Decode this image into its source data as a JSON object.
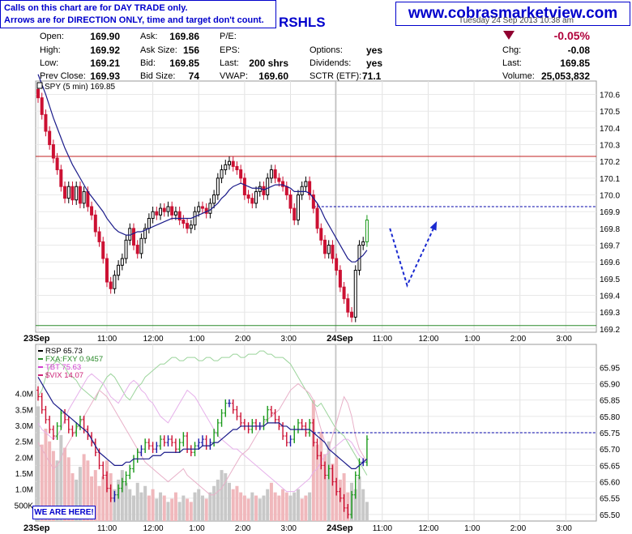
{
  "notice": {
    "line1": "Calls on this chart are for DAY TRADE only.",
    "line2": "Arrows are for DIRECTION ONLY, time and target don't count."
  },
  "website": "www.cobrasmarketview.com",
  "ticker_partial": "RSHLS",
  "quote": {
    "open_label": "Open:",
    "open": "169.90",
    "high_label": "High:",
    "high": "169.92",
    "low_label": "Low:",
    "low": "169.21",
    "prev_close_label": "Prev Close:",
    "prev_close": "169.93",
    "ask_label": "Ask:",
    "ask": "169.86",
    "ask_size_label": "Ask Size:",
    "ask_size": "156",
    "bid_label": "Bid:",
    "bid": "169.85",
    "bid_size_label": "Bid Size:",
    "bid_size": "74",
    "pe_label": "P/E:",
    "eps_label": "EPS:",
    "last_label": "Last:",
    "last_shares": "200 shrs",
    "vwap_label": "VWAP:",
    "vwap": "169.60",
    "options_label": "Options:",
    "options": "yes",
    "dividends_label": "Dividends:",
    "dividends": "yes",
    "sctr_label": "SCTR (ETF):",
    "sctr": "71.1",
    "pct_change": "-0.05%",
    "chg_label": "Chg:",
    "chg": "-0.08",
    "last2_label": "Last:",
    "last2": "169.85",
    "volume_label": "Volume:",
    "volume": "25,053,832",
    "date_partial": "Tuesday  24 Sep 2013  10:38 am"
  },
  "here_label": "WE ARE HERE!",
  "chart_data": [
    {
      "type": "candlestick",
      "legend": "SPY (5 min) 169.85",
      "ylim": [
        169.18,
        170.68
      ],
      "yticks": [
        "169.2",
        "169.3",
        "169.4",
        "169.5",
        "169.6",
        "169.7",
        "169.8",
        "169.9",
        "170.0",
        "170.1",
        "170.2",
        "170.3",
        "170.4",
        "170.5",
        "170.6"
      ],
      "x_labels": [
        {
          "t": 0,
          "label": "23Sep"
        },
        {
          "t": 18,
          "label": "11:00"
        },
        {
          "t": 30,
          "label": "12:00"
        },
        {
          "t": 42,
          "label": "1:00"
        },
        {
          "t": 54,
          "label": "2:00"
        },
        {
          "t": 66,
          "label": "3:00"
        },
        {
          "t": 78,
          "label": "24Sep"
        },
        {
          "t": 90,
          "label": "11:00"
        },
        {
          "t": 102,
          "label": "12:00"
        },
        {
          "t": 114,
          "label": "1:00"
        },
        {
          "t": 126,
          "label": "2:00"
        },
        {
          "t": 138,
          "label": "3:00"
        }
      ],
      "hlines": [
        {
          "value": 170.23,
          "color": "#c02020",
          "style": "solid"
        },
        {
          "value": 169.93,
          "color": "#0000aa",
          "style": "dashed",
          "from_t": 72
        },
        {
          "value": 169.22,
          "color": "#2a8a2a",
          "style": "solid"
        }
      ],
      "close": [
        170.58,
        170.48,
        170.38,
        170.3,
        170.22,
        170.15,
        170.05,
        169.98,
        170.05,
        169.97,
        170.05,
        169.95,
        170.02,
        169.93,
        169.88,
        169.78,
        169.72,
        169.62,
        169.48,
        169.44,
        169.52,
        169.58,
        169.62,
        169.73,
        169.8,
        169.7,
        169.65,
        169.74,
        169.8,
        169.86,
        169.9,
        169.88,
        169.92,
        169.9,
        169.93,
        169.88,
        169.9,
        169.85,
        169.83,
        169.8,
        169.82,
        169.9,
        169.93,
        169.92,
        169.89,
        169.95,
        170.0,
        170.1,
        170.15,
        170.18,
        170.2,
        170.17,
        170.15,
        170.1,
        170.0,
        169.98,
        169.95,
        170.02,
        170.05,
        170.0,
        170.1,
        170.15,
        170.1,
        170.08,
        170.05,
        170.0,
        169.92,
        169.85,
        170.0,
        170.05,
        170.08,
        170.0,
        169.92,
        169.8,
        169.73,
        169.65,
        169.7,
        169.62,
        169.55,
        169.45,
        169.38,
        169.3,
        169.27,
        169.55,
        169.7,
        169.72,
        169.85
      ],
      "ma": [
        170.72,
        170.66,
        170.6,
        170.53,
        170.46,
        170.4,
        170.34,
        170.28,
        170.23,
        170.18,
        170.14,
        170.1,
        170.06,
        170.02,
        169.99,
        169.96,
        169.93,
        169.9,
        169.86,
        169.83,
        169.8,
        169.78,
        169.77,
        169.76,
        169.76,
        169.77,
        169.78,
        169.78,
        169.79,
        169.8,
        169.81,
        169.82,
        169.83,
        169.84,
        169.85,
        169.86,
        169.86,
        169.86,
        169.86,
        169.86,
        169.86,
        169.87,
        169.88,
        169.89,
        169.9,
        169.91,
        169.93,
        169.95,
        169.98,
        170.0,
        170.03,
        170.05,
        170.06,
        170.07,
        170.06,
        170.05,
        170.04,
        170.04,
        170.04,
        170.03,
        170.04,
        170.05,
        170.06,
        170.06,
        170.06,
        170.05,
        170.04,
        170.02,
        170.02,
        170.02,
        170.02,
        170.01,
        169.98,
        169.95,
        169.91,
        169.86,
        169.82,
        169.78,
        169.74,
        169.7,
        169.66,
        169.62,
        169.6,
        169.6,
        169.62,
        169.64,
        169.67
      ],
      "arrow": [
        {
          "t": 92,
          "v": 169.8
        },
        {
          "t": 96.5,
          "v": 169.46
        },
        {
          "t": 104,
          "v": 169.83
        }
      ]
    },
    {
      "type": "candlestick-with-volume",
      "legend": [
        "RSP 65.73",
        "FXA:FXY 0.9457",
        "TBT 75.63",
        "$VIX 14.07"
      ],
      "legend_colors": [
        "#000000",
        "#2a8a2a",
        "#d040d0",
        "#cc2277"
      ],
      "ylim": [
        65.48,
        66.02
      ],
      "yticks": [
        "65.50",
        "65.55",
        "65.60",
        "65.65",
        "65.70",
        "65.75",
        "65.80",
        "65.85",
        "65.90",
        "65.95"
      ],
      "volume_ticks": [
        "500K",
        "1.0M",
        "1.5M",
        "2.0M",
        "2.5M",
        "3.0M",
        "3.5M",
        "4.0M"
      ],
      "hline": {
        "value": 65.75,
        "color": "#0000aa",
        "style": "dashed",
        "from_t": 72
      },
      "close": [
        65.86,
        65.82,
        65.79,
        65.76,
        65.74,
        65.77,
        65.81,
        65.79,
        65.76,
        65.75,
        65.77,
        65.79,
        65.76,
        65.74,
        65.72,
        65.69,
        65.65,
        65.62,
        65.58,
        65.55,
        65.56,
        65.58,
        65.6,
        65.62,
        65.64,
        65.67,
        65.69,
        65.7,
        65.72,
        65.71,
        65.7,
        65.71,
        65.73,
        65.72,
        65.73,
        65.72,
        65.7,
        65.72,
        65.74,
        65.7,
        65.69,
        65.71,
        65.72,
        65.73,
        65.71,
        65.72,
        65.75,
        65.78,
        65.81,
        65.84,
        65.84,
        65.82,
        65.8,
        65.78,
        65.77,
        65.76,
        65.78,
        65.77,
        65.77,
        65.79,
        65.82,
        65.81,
        65.79,
        65.77,
        65.74,
        65.72,
        65.73,
        65.76,
        65.78,
        65.77,
        65.75,
        65.78,
        65.72,
        65.68,
        65.65,
        65.62,
        65.64,
        65.6,
        65.57,
        65.55,
        65.52,
        65.5,
        65.56,
        65.62,
        65.66,
        65.66,
        65.73
      ],
      "ma": [
        65.92,
        65.9,
        65.88,
        65.86,
        65.84,
        65.83,
        65.82,
        65.81,
        65.8,
        65.79,
        65.78,
        65.77,
        65.76,
        65.75,
        65.73,
        65.71,
        65.69,
        65.68,
        65.67,
        65.66,
        65.65,
        65.65,
        65.65,
        65.66,
        65.66,
        65.67,
        65.67,
        65.67,
        65.67,
        65.67,
        65.68,
        65.68,
        65.68,
        65.69,
        65.69,
        65.69,
        65.69,
        65.69,
        65.7,
        65.7,
        65.7,
        65.7,
        65.7,
        65.71,
        65.71,
        65.71,
        65.72,
        65.72,
        65.73,
        65.74,
        65.75,
        65.76,
        65.76,
        65.77,
        65.77,
        65.77,
        65.77,
        65.77,
        65.77,
        65.77,
        65.78,
        65.78,
        65.78,
        65.78,
        65.77,
        65.77,
        65.76,
        65.76,
        65.76,
        65.76,
        65.76,
        65.76,
        65.75,
        65.74,
        65.73,
        65.72,
        65.7,
        65.69,
        65.68,
        65.67,
        65.66,
        65.65,
        65.64,
        65.64,
        65.65,
        65.66,
        65.67
      ],
      "volume_millions": [
        3.6,
        2.4,
        2.9,
        2.5,
        2.2,
        1.9,
        2.7,
        2.3,
        2.0,
        1.5,
        1.3,
        1.7,
        2.1,
        1.9,
        1.4,
        1.6,
        1.1,
        1.4,
        1.9,
        1.5,
        1.0,
        1.3,
        1.6,
        1.2,
        1.0,
        0.8,
        1.2,
        0.9,
        1.1,
        0.8,
        1.0,
        0.7,
        0.9,
        0.8,
        0.6,
        0.7,
        0.9,
        0.6,
        0.8,
        0.7,
        0.6,
        0.9,
        1.0,
        0.8,
        0.7,
        0.9,
        1.1,
        1.3,
        1.6,
        1.5,
        1.2,
        1.0,
        1.1,
        0.9,
        0.8,
        0.7,
        0.9,
        0.8,
        0.7,
        0.8,
        1.0,
        1.2,
        0.9,
        0.8,
        1.0,
        0.9,
        0.8,
        0.9,
        1.0,
        0.7,
        0.8,
        0.9,
        3.8,
        2.4,
        2.8,
        2.1,
        2.5,
        1.8,
        2.0,
        1.3,
        1.5,
        0.9,
        1.2,
        1.0,
        1.4,
        1.0,
        0.6
      ],
      "fxa_fxy": [
        65.86,
        65.88,
        65.92,
        65.95,
        65.96,
        65.97,
        65.96,
        65.95,
        65.93,
        65.92,
        65.91,
        65.89,
        65.88,
        65.87,
        65.86,
        65.85,
        65.88,
        65.9,
        65.92,
        65.93,
        65.92,
        65.9,
        65.88,
        65.86,
        65.85,
        65.87,
        65.89,
        65.9,
        65.92,
        65.93,
        65.94,
        65.95,
        65.96,
        65.96,
        65.97,
        65.98,
        65.98,
        65.97,
        65.97,
        65.98,
        65.98,
        65.98,
        65.97,
        65.97,
        65.98,
        65.98,
        65.97,
        65.97,
        65.98,
        65.98,
        65.98,
        65.99,
        65.99,
        65.98,
        65.98,
        65.99,
        65.99,
        65.99,
        66.0,
        66.0,
        65.99,
        65.99,
        65.98,
        65.98,
        65.98,
        65.97,
        65.96,
        65.94,
        65.92,
        65.9,
        65.88,
        65.86,
        65.84,
        65.83,
        65.84,
        65.82,
        65.8,
        65.78,
        65.76,
        65.75,
        65.74,
        65.72,
        65.7,
        65.68,
        65.66,
        65.64,
        65.62
      ],
      "tbt": [
        65.78,
        65.76,
        65.75,
        65.74,
        65.73,
        65.74,
        65.76,
        65.79,
        65.82,
        65.84,
        65.86,
        65.88,
        65.9,
        65.92,
        65.93,
        65.92,
        65.91,
        65.9,
        65.88,
        65.86,
        65.85,
        65.84,
        65.86,
        65.88,
        65.9,
        65.91,
        65.9,
        65.88,
        65.87,
        65.85,
        65.84,
        65.82,
        65.8,
        65.79,
        65.78,
        65.8,
        65.82,
        65.84,
        65.86,
        65.88,
        65.87,
        65.86,
        65.84,
        65.82,
        65.8,
        65.78,
        65.76,
        65.74,
        65.73,
        65.72,
        65.71,
        65.7,
        65.7,
        65.69,
        65.68,
        65.67,
        65.66,
        65.65,
        65.64,
        65.63,
        65.62,
        65.61,
        65.6,
        65.59,
        65.58,
        65.57,
        65.57,
        65.57,
        65.58,
        65.59,
        65.6,
        65.61,
        65.63,
        65.64,
        65.66,
        65.68,
        65.69,
        65.7,
        65.71,
        65.72,
        65.73,
        65.73,
        65.72,
        65.7,
        65.68,
        65.67,
        65.66
      ],
      "vix": [
        65.72,
        65.7,
        65.68,
        65.66,
        65.64,
        65.65,
        65.67,
        65.7,
        65.72,
        65.74,
        65.76,
        65.78,
        65.8,
        65.82,
        65.84,
        65.86,
        65.88,
        65.87,
        65.86,
        65.84,
        65.82,
        65.8,
        65.78,
        65.76,
        65.74,
        65.72,
        65.7,
        65.68,
        65.66,
        65.65,
        65.64,
        65.63,
        65.62,
        65.61,
        65.6,
        65.61,
        65.62,
        65.63,
        65.64,
        65.62,
        65.61,
        65.6,
        65.59,
        65.58,
        65.57,
        65.56,
        65.56,
        65.57,
        65.58,
        65.6,
        65.62,
        65.64,
        65.66,
        65.68,
        65.69,
        65.7,
        65.72,
        65.74,
        65.76,
        65.78,
        65.79,
        65.8,
        65.81,
        65.82,
        65.84,
        65.86,
        65.88,
        65.89,
        65.9,
        65.89,
        65.88,
        65.87,
        65.85,
        65.8,
        65.76,
        65.72,
        65.7,
        65.74,
        65.78,
        65.82,
        65.86,
        65.84,
        65.8,
        65.74,
        65.7,
        65.68,
        65.66
      ]
    }
  ]
}
